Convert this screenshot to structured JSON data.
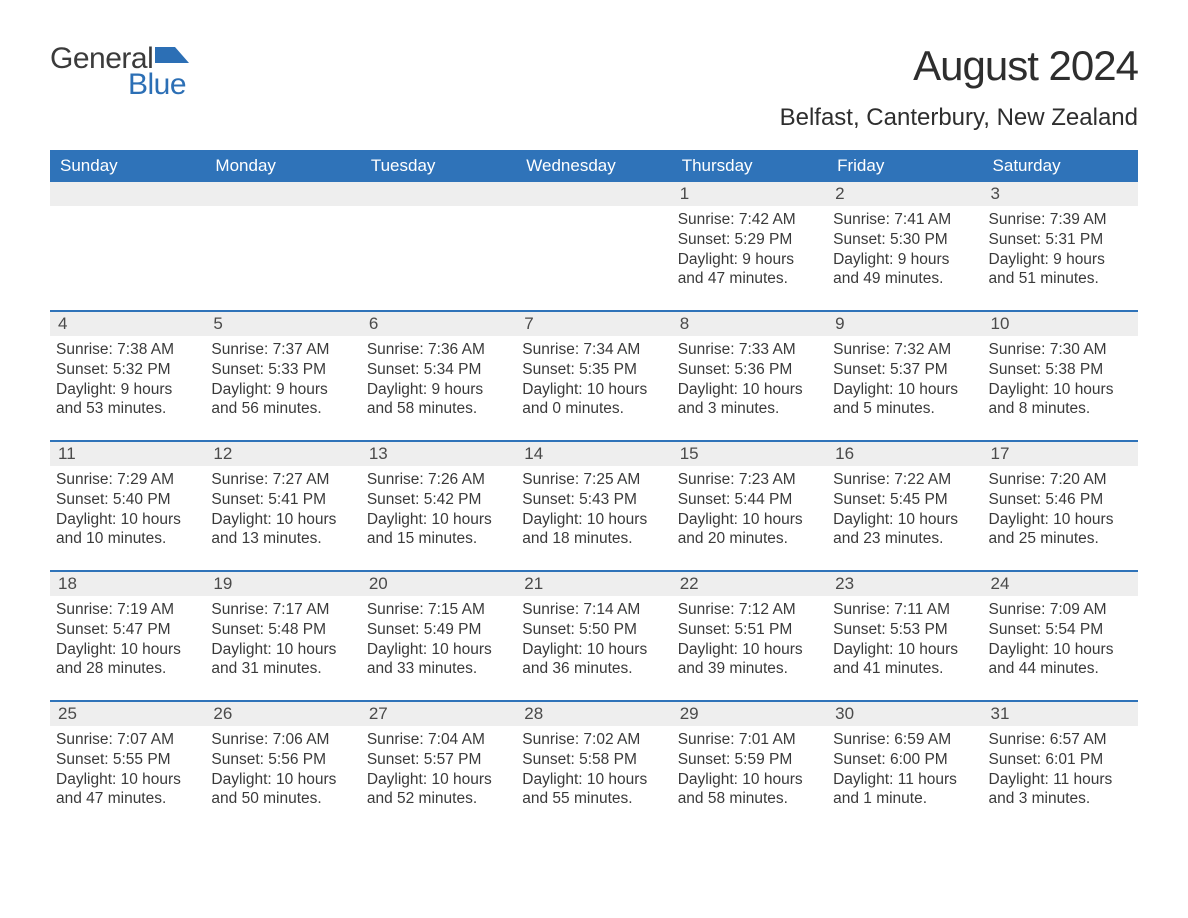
{
  "logo": {
    "text_general": "General",
    "text_blue": "Blue",
    "flag_color": "#2c6fb5"
  },
  "title": "August 2024",
  "location": "Belfast, Canterbury, New Zealand",
  "colors": {
    "header_bg": "#2f73b9",
    "header_text": "#ffffff",
    "daynum_bg": "#eeeeee",
    "row_border": "#2f73b9",
    "body_text": "#3a3a3a",
    "page_bg": "#ffffff"
  },
  "typography": {
    "title_fontsize": 42,
    "location_fontsize": 24,
    "weekday_fontsize": 17,
    "daynum_fontsize": 17,
    "body_fontsize": 15.5
  },
  "calendar": {
    "weekdays": [
      "Sunday",
      "Monday",
      "Tuesday",
      "Wednesday",
      "Thursday",
      "Friday",
      "Saturday"
    ],
    "weeks": [
      [
        null,
        null,
        null,
        null,
        {
          "d": "1",
          "sunrise": "7:42 AM",
          "sunset": "5:29 PM",
          "daylight": "9 hours and 47 minutes."
        },
        {
          "d": "2",
          "sunrise": "7:41 AM",
          "sunset": "5:30 PM",
          "daylight": "9 hours and 49 minutes."
        },
        {
          "d": "3",
          "sunrise": "7:39 AM",
          "sunset": "5:31 PM",
          "daylight": "9 hours and 51 minutes."
        }
      ],
      [
        {
          "d": "4",
          "sunrise": "7:38 AM",
          "sunset": "5:32 PM",
          "daylight": "9 hours and 53 minutes."
        },
        {
          "d": "5",
          "sunrise": "7:37 AM",
          "sunset": "5:33 PM",
          "daylight": "9 hours and 56 minutes."
        },
        {
          "d": "6",
          "sunrise": "7:36 AM",
          "sunset": "5:34 PM",
          "daylight": "9 hours and 58 minutes."
        },
        {
          "d": "7",
          "sunrise": "7:34 AM",
          "sunset": "5:35 PM",
          "daylight": "10 hours and 0 minutes."
        },
        {
          "d": "8",
          "sunrise": "7:33 AM",
          "sunset": "5:36 PM",
          "daylight": "10 hours and 3 minutes."
        },
        {
          "d": "9",
          "sunrise": "7:32 AM",
          "sunset": "5:37 PM",
          "daylight": "10 hours and 5 minutes."
        },
        {
          "d": "10",
          "sunrise": "7:30 AM",
          "sunset": "5:38 PM",
          "daylight": "10 hours and 8 minutes."
        }
      ],
      [
        {
          "d": "11",
          "sunrise": "7:29 AM",
          "sunset": "5:40 PM",
          "daylight": "10 hours and 10 minutes."
        },
        {
          "d": "12",
          "sunrise": "7:27 AM",
          "sunset": "5:41 PM",
          "daylight": "10 hours and 13 minutes."
        },
        {
          "d": "13",
          "sunrise": "7:26 AM",
          "sunset": "5:42 PM",
          "daylight": "10 hours and 15 minutes."
        },
        {
          "d": "14",
          "sunrise": "7:25 AM",
          "sunset": "5:43 PM",
          "daylight": "10 hours and 18 minutes."
        },
        {
          "d": "15",
          "sunrise": "7:23 AM",
          "sunset": "5:44 PM",
          "daylight": "10 hours and 20 minutes."
        },
        {
          "d": "16",
          "sunrise": "7:22 AM",
          "sunset": "5:45 PM",
          "daylight": "10 hours and 23 minutes."
        },
        {
          "d": "17",
          "sunrise": "7:20 AM",
          "sunset": "5:46 PM",
          "daylight": "10 hours and 25 minutes."
        }
      ],
      [
        {
          "d": "18",
          "sunrise": "7:19 AM",
          "sunset": "5:47 PM",
          "daylight": "10 hours and 28 minutes."
        },
        {
          "d": "19",
          "sunrise": "7:17 AM",
          "sunset": "5:48 PM",
          "daylight": "10 hours and 31 minutes."
        },
        {
          "d": "20",
          "sunrise": "7:15 AM",
          "sunset": "5:49 PM",
          "daylight": "10 hours and 33 minutes."
        },
        {
          "d": "21",
          "sunrise": "7:14 AM",
          "sunset": "5:50 PM",
          "daylight": "10 hours and 36 minutes."
        },
        {
          "d": "22",
          "sunrise": "7:12 AM",
          "sunset": "5:51 PM",
          "daylight": "10 hours and 39 minutes."
        },
        {
          "d": "23",
          "sunrise": "7:11 AM",
          "sunset": "5:53 PM",
          "daylight": "10 hours and 41 minutes."
        },
        {
          "d": "24",
          "sunrise": "7:09 AM",
          "sunset": "5:54 PM",
          "daylight": "10 hours and 44 minutes."
        }
      ],
      [
        {
          "d": "25",
          "sunrise": "7:07 AM",
          "sunset": "5:55 PM",
          "daylight": "10 hours and 47 minutes."
        },
        {
          "d": "26",
          "sunrise": "7:06 AM",
          "sunset": "5:56 PM",
          "daylight": "10 hours and 50 minutes."
        },
        {
          "d": "27",
          "sunrise": "7:04 AM",
          "sunset": "5:57 PM",
          "daylight": "10 hours and 52 minutes."
        },
        {
          "d": "28",
          "sunrise": "7:02 AM",
          "sunset": "5:58 PM",
          "daylight": "10 hours and 55 minutes."
        },
        {
          "d": "29",
          "sunrise": "7:01 AM",
          "sunset": "5:59 PM",
          "daylight": "10 hours and 58 minutes."
        },
        {
          "d": "30",
          "sunrise": "6:59 AM",
          "sunset": "6:00 PM",
          "daylight": "11 hours and 1 minute."
        },
        {
          "d": "31",
          "sunrise": "6:57 AM",
          "sunset": "6:01 PM",
          "daylight": "11 hours and 3 minutes."
        }
      ]
    ],
    "labels": {
      "sunrise": "Sunrise:",
      "sunset": "Sunset:",
      "daylight": "Daylight:"
    }
  }
}
